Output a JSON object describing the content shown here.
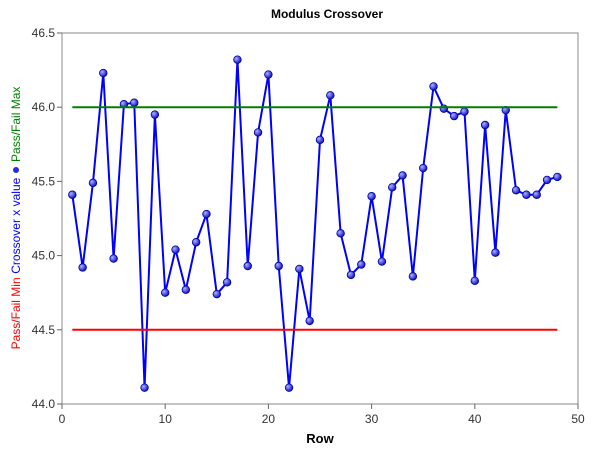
{
  "chart_data": {
    "type": "line",
    "title": "Modulus Crossover",
    "xlabel": "Row",
    "ylabel_parts": [
      {
        "text": "Pass/Fail Min",
        "color": "#ff0000"
      },
      {
        "text": "Crossover x value",
        "color": "#0000ff"
      },
      {
        "text": "Pass/Fail Max",
        "color": "#008000"
      }
    ],
    "xlim": [
      0,
      50
    ],
    "ylim": [
      44.0,
      46.5
    ],
    "xticks": [
      "0",
      "10",
      "20",
      "30",
      "40",
      "50"
    ],
    "yticks": [
      "44.0",
      "44.5",
      "45.0",
      "45.5",
      "46.0",
      "46.5"
    ],
    "grid": false,
    "series": [
      {
        "name": "Crossover x value",
        "color": "#0000ff",
        "marker": "circle",
        "x": [
          1,
          2,
          3,
          4,
          5,
          6,
          7,
          8,
          9,
          10,
          11,
          12,
          13,
          14,
          15,
          16,
          17,
          18,
          19,
          20,
          21,
          22,
          23,
          24,
          25,
          26,
          27,
          28,
          29,
          30,
          31,
          32,
          33,
          34,
          35,
          36,
          37,
          38,
          39,
          40,
          41,
          42,
          43,
          44,
          45,
          46,
          47,
          48
        ],
        "y": [
          45.41,
          44.92,
          45.49,
          46.23,
          44.98,
          46.02,
          46.03,
          44.11,
          45.95,
          44.75,
          45.04,
          44.77,
          45.09,
          45.28,
          44.74,
          44.82,
          46.32,
          44.93,
          45.83,
          46.22,
          44.93,
          44.11,
          44.91,
          44.56,
          45.78,
          46.08,
          45.15,
          44.87,
          44.94,
          45.4,
          44.96,
          45.46,
          45.54,
          44.86,
          45.59,
          46.14,
          45.99,
          45.94,
          45.97,
          44.83,
          45.88,
          45.02,
          45.98,
          45.44,
          45.41,
          45.41,
          45.51,
          45.53
        ]
      },
      {
        "name": "Pass/Fail Max",
        "color": "#008000",
        "x": [
          1,
          48
        ],
        "y": [
          46.0,
          46.0
        ]
      },
      {
        "name": "Pass/Fail Min",
        "color": "#ff0000",
        "x": [
          1,
          48
        ],
        "y": [
          44.5,
          44.5
        ]
      }
    ]
  }
}
